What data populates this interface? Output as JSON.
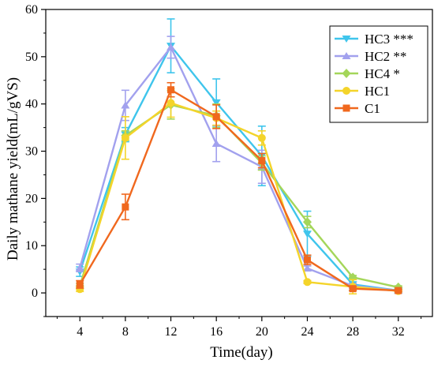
{
  "chart_data": {
    "type": "line",
    "title": "",
    "xlabel": "Time(day)",
    "ylabel": "Daily mathane yield(mL/gVS)",
    "x": [
      4,
      8,
      12,
      16,
      20,
      24,
      28,
      32
    ],
    "xlim": [
      1,
      35
    ],
    "ylim": [
      -5,
      60
    ],
    "xticks": [
      4,
      8,
      12,
      16,
      20,
      24,
      28,
      32
    ],
    "yticks": [
      0,
      10,
      20,
      30,
      40,
      50,
      60
    ],
    "grid": false,
    "legend_position": "top-right",
    "series": [
      {
        "name": "HC3 ***",
        "color": "#3fc5ec",
        "marker": "triangle-down",
        "values": [
          4.5,
          33.5,
          52.3,
          40.3,
          29.0,
          12.5,
          1.8,
          0.5
        ],
        "errors": [
          1.0,
          1.5,
          5.7,
          5.0,
          6.3,
          4.8,
          1.3,
          0.4
        ]
      },
      {
        "name": "HC2 **",
        "color": "#a2a1ee",
        "marker": "triangle-up",
        "values": [
          5.3,
          39.7,
          52.0,
          31.6,
          26.7,
          5.2,
          1.5,
          0.5
        ],
        "errors": [
          0.8,
          3.2,
          2.3,
          3.8,
          3.5,
          0.5,
          0.5,
          0.3
        ]
      },
      {
        "name": "HC4 *",
        "color": "#a4d65a",
        "marker": "diamond",
        "values": [
          1.5,
          33.3,
          39.8,
          37.5,
          27.5,
          15.0,
          3.3,
          1.2
        ],
        "errors": [
          0.5,
          1.0,
          3.0,
          2.5,
          1.5,
          1.2,
          0.4,
          0.3
        ]
      },
      {
        "name": "HC1",
        "color": "#f4d42a",
        "marker": "circle",
        "values": [
          0.8,
          32.8,
          40.2,
          37.0,
          32.8,
          2.3,
          1.3,
          0.4
        ],
        "errors": [
          0.5,
          4.5,
          3.0,
          1.5,
          1.5,
          0.3,
          1.5,
          0.2
        ]
      },
      {
        "name": "C1",
        "color": "#f0681e",
        "marker": "square",
        "values": [
          1.8,
          18.2,
          43.0,
          37.3,
          28.0,
          7.0,
          0.9,
          0.5
        ],
        "errors": [
          0.8,
          2.7,
          1.5,
          2.5,
          1.5,
          1.0,
          0.4,
          0.2
        ]
      }
    ]
  }
}
